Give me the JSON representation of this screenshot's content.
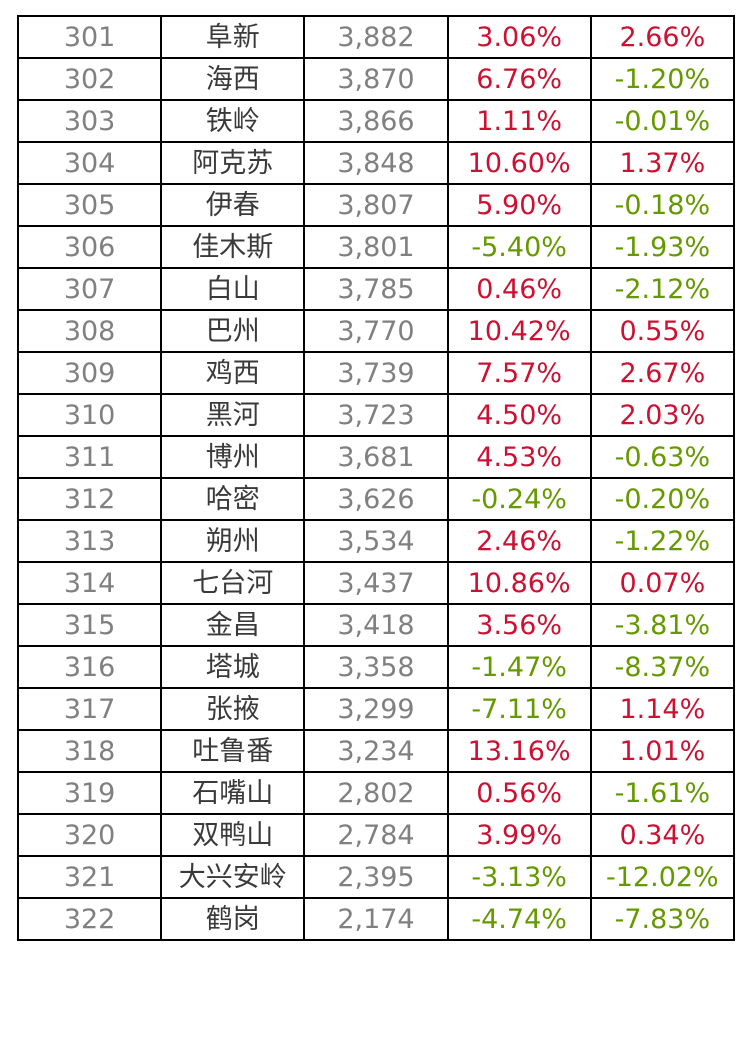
{
  "colors": {
    "positive": "#cc1133",
    "negative": "#669900",
    "rank_and_value_text": "#808080",
    "city_text": "#3a3a3a",
    "grid_border": "#000000",
    "background": "#ffffff"
  },
  "chart_data": {
    "type": "table",
    "grid": "on",
    "visible_rank_range": [
      301,
      322
    ],
    "rows": [
      [
        "301",
        "阜新",
        "3,882",
        "3.06%",
        "2.66%"
      ],
      [
        "302",
        "海西",
        "3,870",
        "6.76%",
        "-1.20%"
      ],
      [
        "303",
        "铁岭",
        "3,866",
        "1.11%",
        "-0.01%"
      ],
      [
        "304",
        "阿克苏",
        "3,848",
        "10.60%",
        "1.37%"
      ],
      [
        "305",
        "伊春",
        "3,807",
        "5.90%",
        "-0.18%"
      ],
      [
        "306",
        "佳木斯",
        "3,801",
        "-5.40%",
        "-1.93%"
      ],
      [
        "307",
        "白山",
        "3,785",
        "0.46%",
        "-2.12%"
      ],
      [
        "308",
        "巴州",
        "3,770",
        "10.42%",
        "0.55%"
      ],
      [
        "309",
        "鸡西",
        "3,739",
        "7.57%",
        "2.67%"
      ],
      [
        "310",
        "黑河",
        "3,723",
        "4.50%",
        "2.03%"
      ],
      [
        "311",
        "博州",
        "3,681",
        "4.53%",
        "-0.63%"
      ],
      [
        "312",
        "哈密",
        "3,626",
        "-0.24%",
        "-0.20%"
      ],
      [
        "313",
        "朔州",
        "3,534",
        "2.46%",
        "-1.22%"
      ],
      [
        "314",
        "七台河",
        "3,437",
        "10.86%",
        "0.07%"
      ],
      [
        "315",
        "金昌",
        "3,418",
        "3.56%",
        "-3.81%"
      ],
      [
        "316",
        "塔城",
        "3,358",
        "-1.47%",
        "-8.37%"
      ],
      [
        "317",
        "张掖",
        "3,299",
        "-7.11%",
        "1.14%"
      ],
      [
        "318",
        "吐鲁番",
        "3,234",
        "13.16%",
        "1.01%"
      ],
      [
        "319",
        "石嘴山",
        "2,802",
        "0.56%",
        "-1.61%"
      ],
      [
        "320",
        "双鸭山",
        "2,784",
        "3.99%",
        "0.34%"
      ],
      [
        "321",
        "大兴安岭",
        "2,395",
        "-3.13%",
        "-12.02%"
      ],
      [
        "322",
        "鹤岗",
        "2,174",
        "-4.74%",
        "-7.83%"
      ]
    ]
  }
}
